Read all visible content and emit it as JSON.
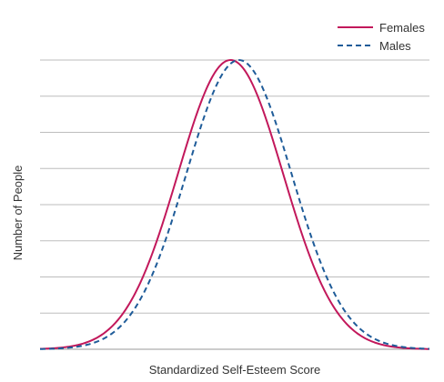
{
  "chart_data": {
    "type": "line",
    "title": "",
    "xlabel": "Standardized Self-Esteem Score",
    "ylabel": "Number of People",
    "x_ticks_shown": false,
    "y_ticks_shown": false,
    "grid": true,
    "legend": "top-right",
    "series": [
      {
        "name": "Females",
        "color": "#c2185b",
        "style": "solid",
        "peak_x": -0.08,
        "sd": 1.0
      },
      {
        "name": "Males",
        "color": "#1f5c99",
        "style": "dashed",
        "peak_x": 0.08,
        "sd": 1.0
      }
    ],
    "xlim": [
      -3.7,
      3.7
    ],
    "ylim": [
      0,
      1
    ]
  }
}
